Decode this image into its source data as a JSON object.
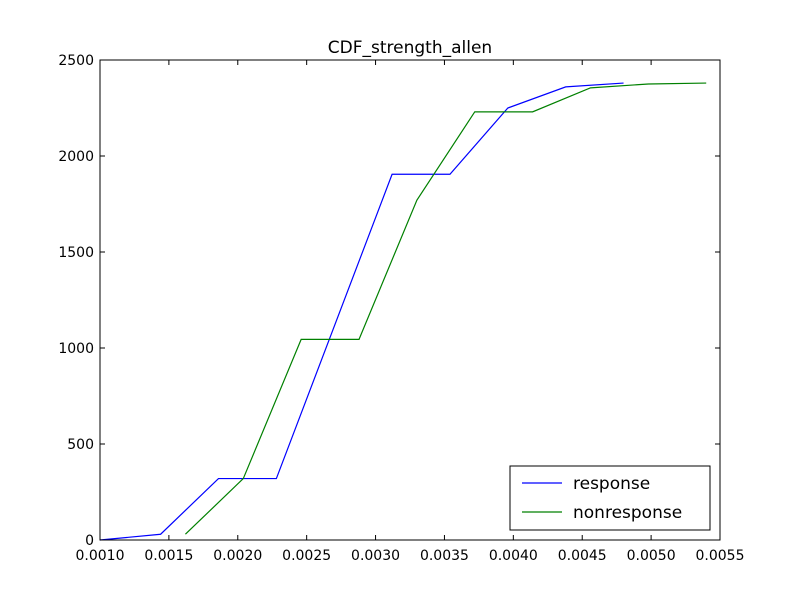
{
  "chart_data": {
    "type": "line",
    "title": "CDF_strength_allen",
    "xlabel": "",
    "ylabel": "",
    "xlim": [
      0.001,
      0.0055
    ],
    "ylim": [
      0,
      2500
    ],
    "x_ticks": [
      0.001,
      0.0015,
      0.002,
      0.0025,
      0.003,
      0.0035,
      0.004,
      0.0045,
      0.005,
      0.0055
    ],
    "x_tick_labels": [
      "0.0010",
      "0.0015",
      "0.0020",
      "0.0025",
      "0.0030",
      "0.0035",
      "0.0040",
      "0.0045",
      "0.0050",
      "0.0055"
    ],
    "y_ticks": [
      0,
      500,
      1000,
      1500,
      2000,
      2500
    ],
    "y_tick_labels": [
      "0",
      "500",
      "1000",
      "1500",
      "2000",
      "2500"
    ],
    "grid": false,
    "legend_position": "lower right",
    "series": [
      {
        "name": "response",
        "color": "#0000ff",
        "x": [
          0.001,
          0.00144,
          0.00186,
          0.00228,
          0.00312,
          0.00354,
          0.00396,
          0.00438,
          0.0048
        ],
        "y": [
          0,
          30,
          320,
          320,
          1905,
          1905,
          2250,
          2360,
          2380
        ]
      },
      {
        "name": "nonresponse",
        "color": "#008000",
        "x": [
          0.00162,
          0.00204,
          0.00246,
          0.00288,
          0.0033,
          0.00372,
          0.00414,
          0.00456,
          0.00498,
          0.0054
        ],
        "y": [
          30,
          320,
          1045,
          1045,
          1770,
          2230,
          2230,
          2355,
          2375,
          2380
        ]
      }
    ]
  }
}
